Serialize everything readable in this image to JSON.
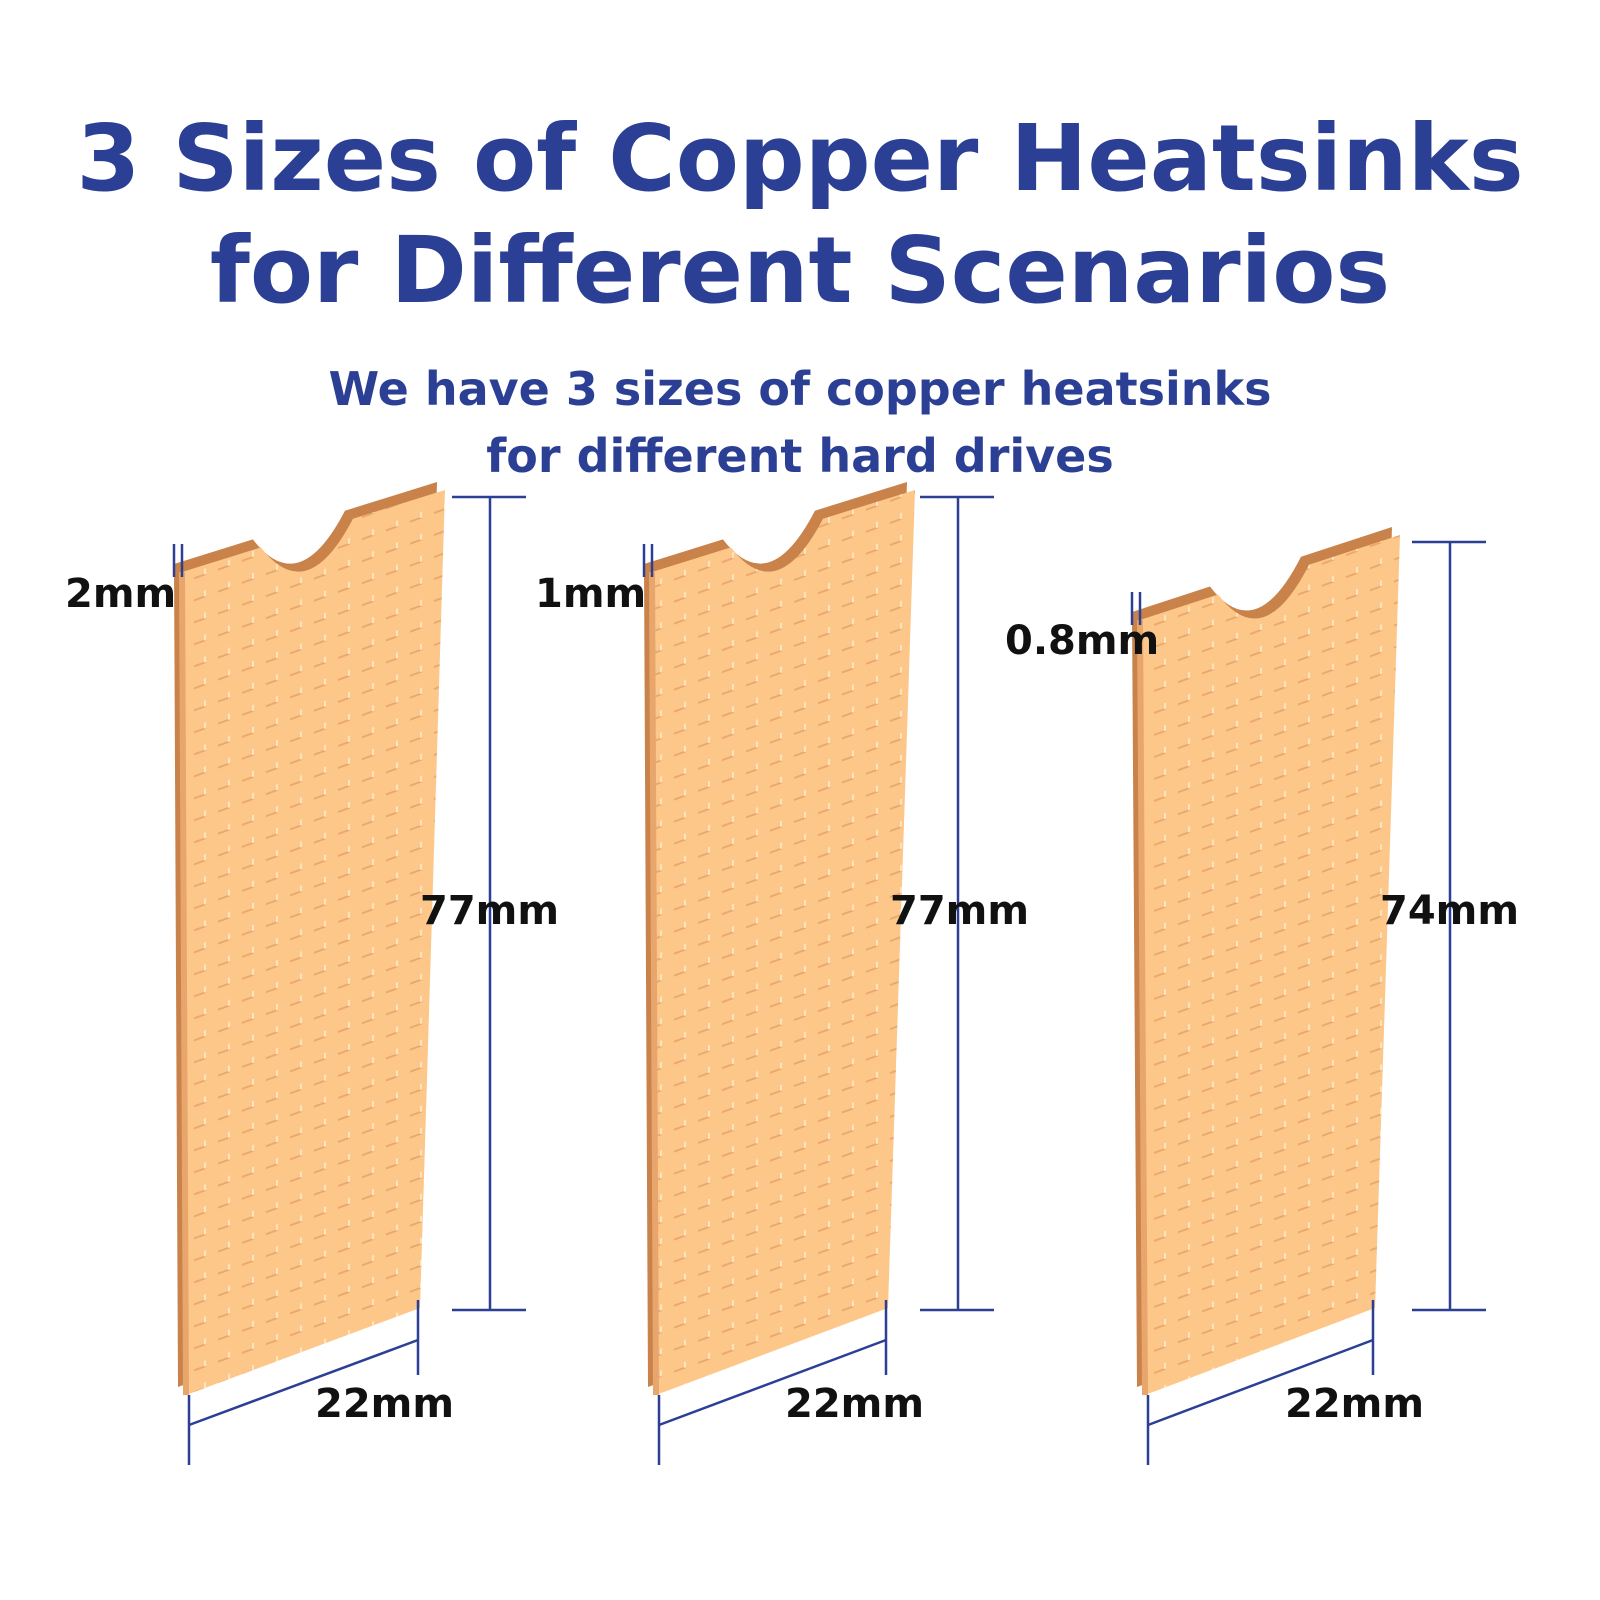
{
  "header": {
    "title": [
      "3 Sizes of Copper Heatsinks",
      "for Different Scenarios"
    ],
    "subtitle": [
      "We have 3 sizes of copper heatsinks",
      "for different hard drives"
    ]
  },
  "heatsinks": [
    {
      "thickness": "2mm",
      "length": "77mm",
      "width": "22mm"
    },
    {
      "thickness": "1mm",
      "length": "77mm",
      "width": "22mm"
    },
    {
      "thickness": "0.8mm",
      "length": "74mm",
      "width": "22mm"
    }
  ]
}
